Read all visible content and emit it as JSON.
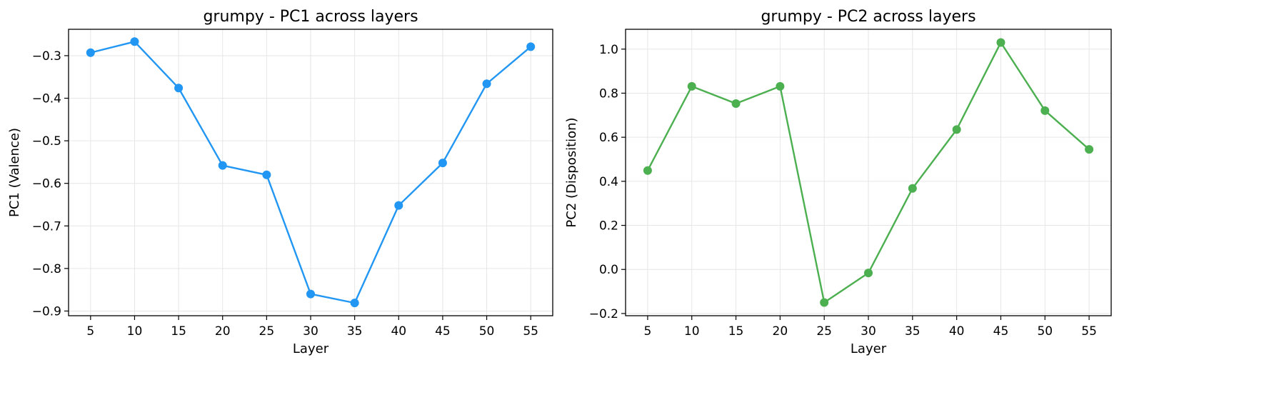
{
  "chart_data": [
    {
      "type": "line",
      "title": "grumpy - PC1 across layers",
      "xlabel": "Layer",
      "ylabel": "PC1 (Valence)",
      "x": [
        5,
        10,
        15,
        20,
        25,
        30,
        35,
        40,
        45,
        50,
        55
      ],
      "xticks": [
        5,
        10,
        15,
        20,
        25,
        30,
        35,
        40,
        45,
        50,
        55
      ],
      "xlim": [
        2.5,
        57.5
      ],
      "yticks": [
        -0.9,
        -0.8,
        -0.7,
        -0.6,
        -0.5,
        -0.4,
        -0.3
      ],
      "ytick_labels": [
        "−0.9",
        "−0.8",
        "−0.7",
        "−0.6",
        "−0.5",
        "−0.4",
        "−0.3"
      ],
      "ylim": [
        -0.911,
        -0.238
      ],
      "grid": true,
      "series": [
        {
          "color": "#2196F3",
          "values": [
            -0.293,
            -0.267,
            -0.376,
            -0.558,
            -0.58,
            -0.86,
            -0.881,
            -0.652,
            -0.552,
            -0.366,
            -0.279
          ]
        }
      ]
    },
    {
      "type": "line",
      "title": "grumpy - PC2 across layers",
      "xlabel": "Layer",
      "ylabel": "PC2 (Disposition)",
      "x": [
        5,
        10,
        15,
        20,
        25,
        30,
        35,
        40,
        45,
        50,
        55
      ],
      "xticks": [
        5,
        10,
        15,
        20,
        25,
        30,
        35,
        40,
        45,
        50,
        55
      ],
      "xlim": [
        2.5,
        57.5
      ],
      "yticks": [
        -0.2,
        0.0,
        0.2,
        0.4,
        0.6,
        0.8,
        1.0
      ],
      "ytick_labels": [
        "−0.2",
        "0.0",
        "0.2",
        "0.4",
        "0.6",
        "0.8",
        "1.0"
      ],
      "ylim": [
        -0.21,
        1.09
      ],
      "grid": true,
      "series": [
        {
          "color": "#4CAF50",
          "values": [
            0.449,
            0.831,
            0.753,
            0.831,
            -0.15,
            -0.016,
            0.368,
            0.635,
            1.03,
            0.721,
            0.545
          ]
        }
      ]
    }
  ]
}
